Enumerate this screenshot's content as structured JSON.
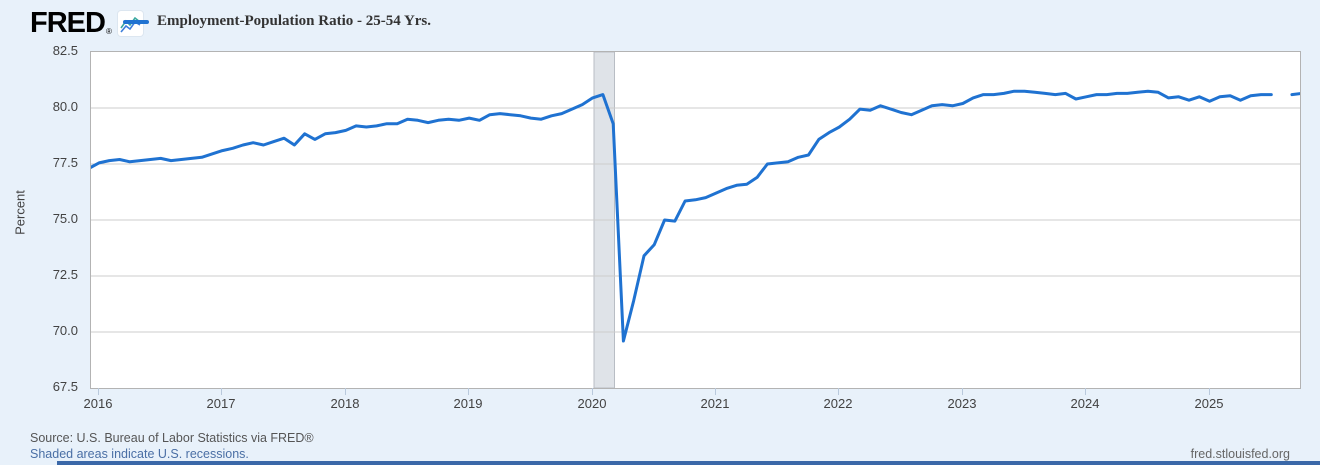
{
  "header": {
    "logo_text": "FRED",
    "registered_mark": "®",
    "legend": {
      "label": "Employment-Population Ratio - 25-54 Yrs.",
      "line_color": "#1f72d1"
    }
  },
  "colors": {
    "background": "#e8f1fa",
    "plot_background": "#ffffff",
    "series_line": "#1f72d1",
    "gridline": "#cccccc",
    "plot_border": "#b3b3b3",
    "recession_fill": "#dfe3e8",
    "recession_edge": "#b8bdc4",
    "axis_text": "#424242",
    "link_text": "#4a6fa5",
    "bottom_bar": "#3a68a8"
  },
  "chart_data": {
    "type": "line",
    "title": "Employment-Population Ratio - 25-54 Yrs.",
    "xlabel": "",
    "ylabel": "Percent",
    "ylim": [
      67.5,
      82.5
    ],
    "y_ticks": [
      "82.5",
      "80.0",
      "77.5",
      "75.0",
      "72.5",
      "70.0",
      "67.5"
    ],
    "x_tick_labels": [
      "2016",
      "2017",
      "2018",
      "2019",
      "2020",
      "2021",
      "2022",
      "2023",
      "2024",
      "2025"
    ],
    "grid": true,
    "legend_position": "top",
    "frequency": "monthly",
    "start_month": "2015-12",
    "end_month": "2025-10",
    "data_gap_month": "2025-08",
    "recessions": [
      {
        "from": "2020-02",
        "to": "2020-04"
      }
    ],
    "series": [
      {
        "name": "Employment-Population Ratio - 25-54 Yrs.",
        "color": "#1f72d1",
        "values": [
          77.3,
          77.55,
          77.65,
          77.7,
          77.6,
          77.65,
          77.7,
          77.75,
          77.65,
          77.7,
          77.75,
          77.8,
          77.95,
          78.1,
          78.2,
          78.35,
          78.45,
          78.35,
          78.5,
          78.65,
          78.35,
          78.85,
          78.6,
          78.85,
          78.9,
          79.0,
          79.2,
          79.15,
          79.2,
          79.3,
          79.3,
          79.5,
          79.45,
          79.35,
          79.45,
          79.5,
          79.45,
          79.55,
          79.45,
          79.7,
          79.75,
          79.7,
          79.65,
          79.55,
          79.5,
          79.65,
          79.75,
          79.95,
          80.15,
          80.45,
          80.6,
          79.3,
          69.6,
          71.4,
          73.4,
          73.9,
          75.0,
          74.95,
          75.85,
          75.9,
          76.0,
          76.2,
          76.4,
          76.55,
          76.6,
          76.9,
          77.5,
          77.55,
          77.6,
          77.8,
          77.9,
          78.6,
          78.9,
          79.15,
          79.5,
          79.95,
          79.9,
          80.1,
          79.95,
          79.8,
          79.7,
          79.9,
          80.1,
          80.15,
          80.1,
          80.2,
          80.45,
          80.6,
          80.6,
          80.65,
          80.75,
          80.75,
          80.7,
          80.65,
          80.6,
          80.65,
          80.4,
          80.5,
          80.6,
          80.6,
          80.65,
          80.65,
          80.7,
          80.75,
          80.7,
          80.45,
          80.5,
          80.35,
          80.5,
          80.3,
          80.5,
          80.55,
          80.35,
          80.55,
          80.6,
          80.6,
          null,
          80.6,
          80.65
        ]
      }
    ]
  },
  "footer": {
    "source": "Source: U.S. Bureau of Labor Statistics via FRED®",
    "recession_note": "Shaded areas indicate U.S. recessions.",
    "site": "fred.stlouisfed.org"
  }
}
